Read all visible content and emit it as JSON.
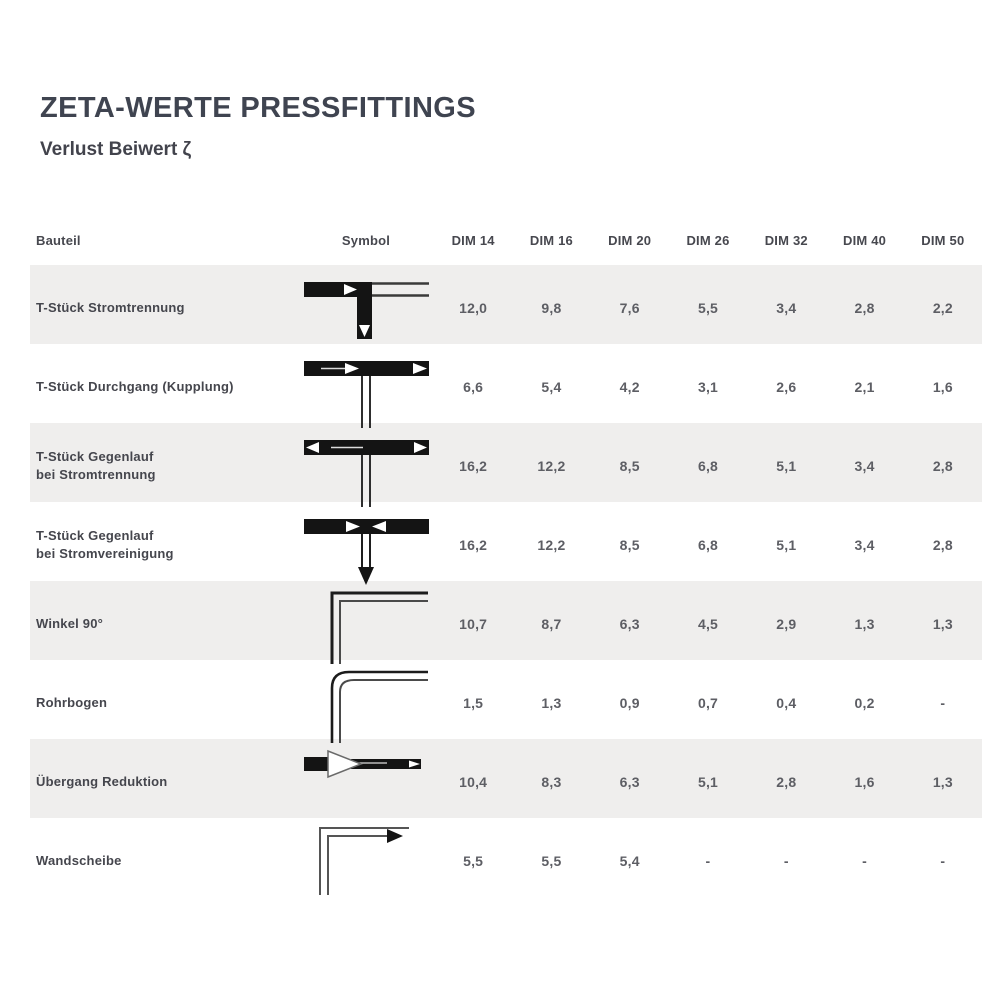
{
  "page": {
    "title": "ZETA-WERTE PRESSFITTINGS",
    "subtitle": "Verlust Beiwert ζ"
  },
  "table": {
    "columns": [
      "Bauteil",
      "Symbol",
      "DIM 14",
      "DIM 16",
      "DIM 20",
      "DIM 26",
      "DIM 32",
      "DIM 40",
      "DIM 50"
    ],
    "rows": [
      {
        "bauteil": "T-Stück Stromtrennung",
        "symbol": "tee-flow-separation",
        "symbol_icon": "tee-flow-separation-icon",
        "values": [
          "12,0",
          "9,8",
          "7,6",
          "5,5",
          "3,4",
          "2,8",
          "2,2"
        ]
      },
      {
        "bauteil": "T-Stück Durchgang (Kupplung)",
        "symbol": "tee-passage-coupling",
        "symbol_icon": "tee-passage-coupling-icon",
        "values": [
          "6,6",
          "5,4",
          "4,2",
          "3,1",
          "2,6",
          "2,1",
          "1,6"
        ]
      },
      {
        "bauteil": "T-Stück Gegenlauf\nbei Stromtrennung",
        "symbol": "tee-counterflow-separation",
        "symbol_icon": "tee-counterflow-separation-icon",
        "values": [
          "16,2",
          "12,2",
          "8,5",
          "6,8",
          "5,1",
          "3,4",
          "2,8"
        ]
      },
      {
        "bauteil": "T-Stück Gegenlauf\nbei Stromvereinigung",
        "symbol": "tee-counterflow-merge",
        "symbol_icon": "tee-counterflow-merge-icon",
        "values": [
          "16,2",
          "12,2",
          "8,5",
          "6,8",
          "5,1",
          "3,4",
          "2,8"
        ]
      },
      {
        "bauteil": "Winkel 90°",
        "symbol": "elbow-90",
        "symbol_icon": "elbow-90-icon",
        "values": [
          "10,7",
          "8,7",
          "6,3",
          "4,5",
          "2,9",
          "1,3",
          "1,3"
        ]
      },
      {
        "bauteil": "Rohrbogen",
        "symbol": "pipe-bend",
        "symbol_icon": "pipe-bend-icon",
        "values": [
          "1,5",
          "1,3",
          "0,9",
          "0,7",
          "0,4",
          "0,2",
          "-"
        ]
      },
      {
        "bauteil": "Übergang Reduktion",
        "symbol": "reducer-transition",
        "symbol_icon": "reducer-transition-icon",
        "values": [
          "10,4",
          "8,3",
          "6,3",
          "5,1",
          "2,8",
          "1,6",
          "1,3"
        ]
      },
      {
        "bauteil": "Wandscheibe",
        "symbol": "wall-plate-elbow",
        "symbol_icon": "wall-plate-elbow-icon",
        "values": [
          "5,5",
          "5,5",
          "5,4",
          "-",
          "-",
          "-",
          "-"
        ]
      }
    ]
  },
  "colors": {
    "heading_text": "#3f4450",
    "label_text": "#45464d",
    "value_text": "#5d5e64",
    "row_shaded_bg": "#efeeed",
    "symbol_black": "#141414"
  }
}
